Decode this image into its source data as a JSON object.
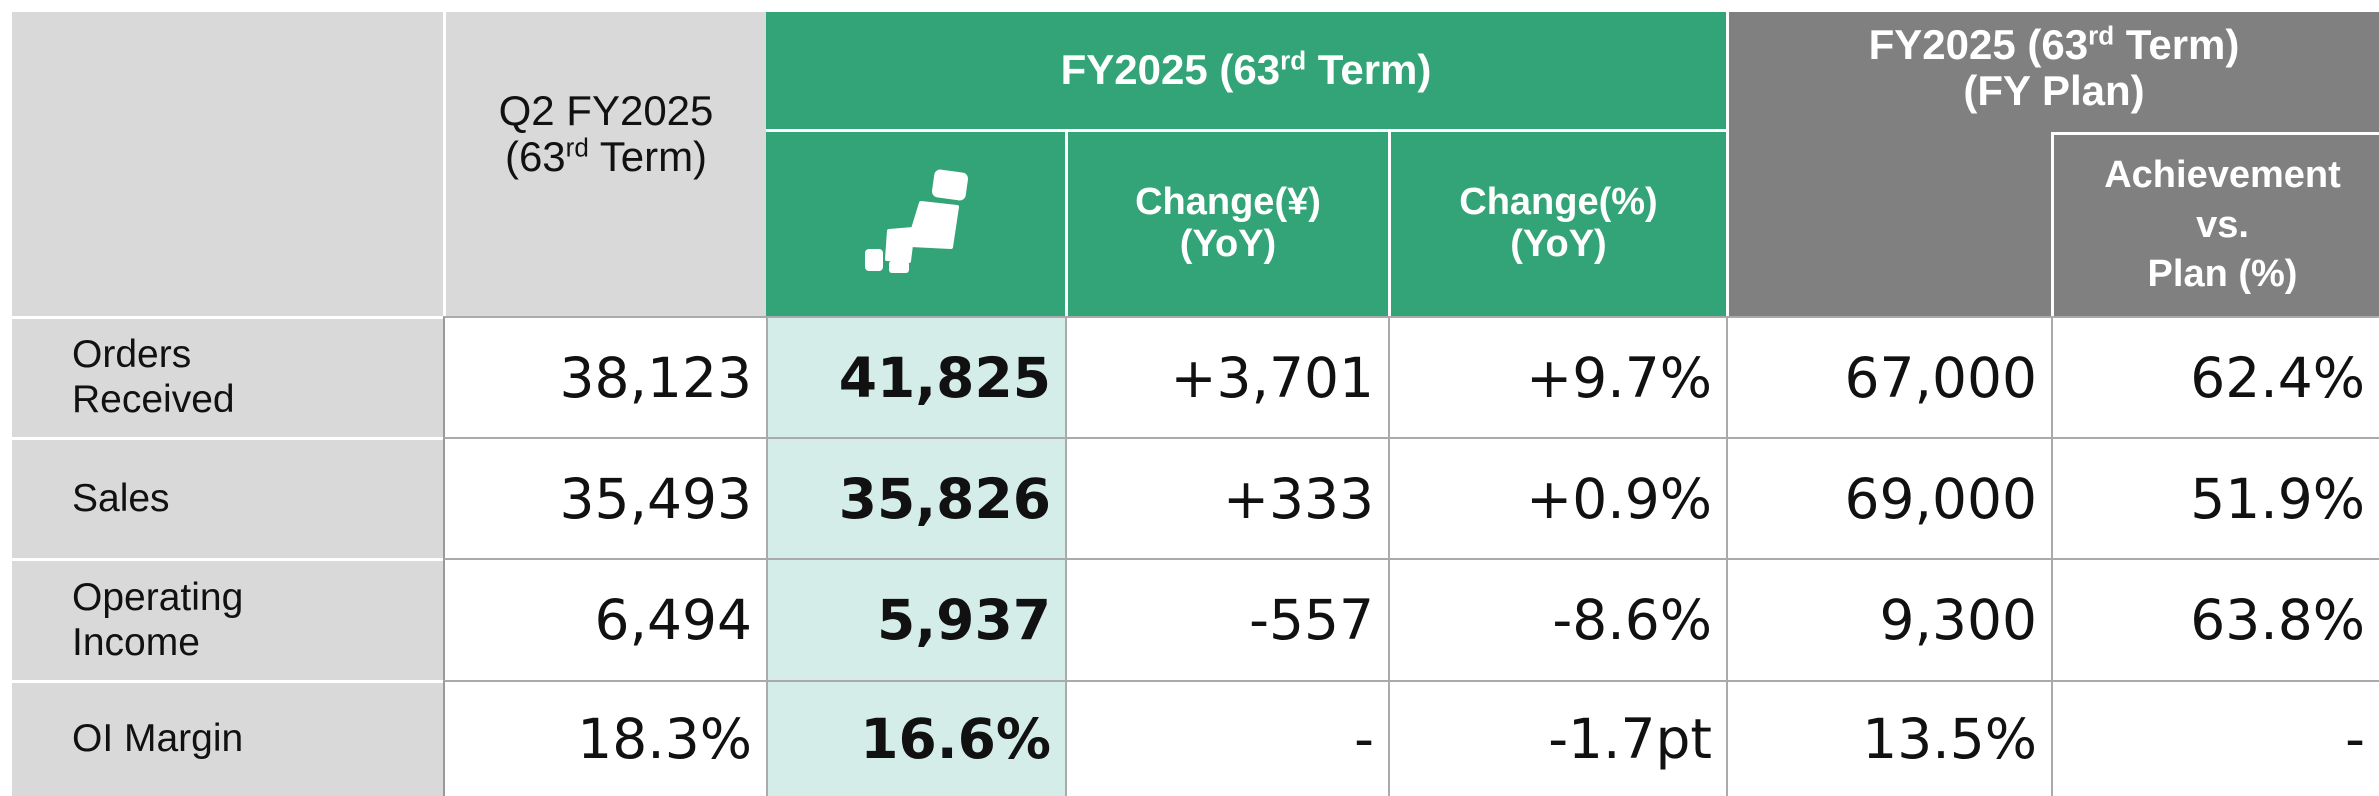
{
  "header": {
    "q2": {
      "line1": "Q2 FY2025",
      "pre": "(63",
      "sup": "rd",
      "post": " Term)"
    },
    "fy": {
      "pre": "FY2025 (63",
      "sup": "rd",
      "post": " Term)"
    },
    "change_yen": [
      "Change(¥)",
      "(YoY)"
    ],
    "change_pct": [
      "Change(%)",
      "(YoY)"
    ],
    "plan": {
      "pre": "FY2025 (63",
      "sup": "rd",
      "post": " Term)",
      "line2": "(FY Plan)"
    },
    "achievement": [
      "Achievement",
      "vs.",
      "Plan (%)"
    ]
  },
  "table": {
    "rows": [
      {
        "label": [
          "Orders",
          "Received"
        ],
        "cells": [
          "38,123",
          "41,825",
          "+3,701",
          "+9.7%",
          "67,000",
          "62.4%"
        ]
      },
      {
        "label": [
          "Sales"
        ],
        "cells": [
          "35,493",
          "35,826",
          "+333",
          "+0.9%",
          "69,000",
          "51.9%"
        ]
      },
      {
        "label": [
          "Operating",
          "Income"
        ],
        "cells": [
          "6,494",
          "5,937",
          "-557",
          "-8.6%",
          "9,300",
          "63.8%"
        ]
      },
      {
        "label": [
          "OI Margin"
        ],
        "cells": [
          "18.3%",
          "16.6%",
          "-",
          "-1.7pt",
          "13.5%",
          "-"
        ]
      }
    ]
  }
}
